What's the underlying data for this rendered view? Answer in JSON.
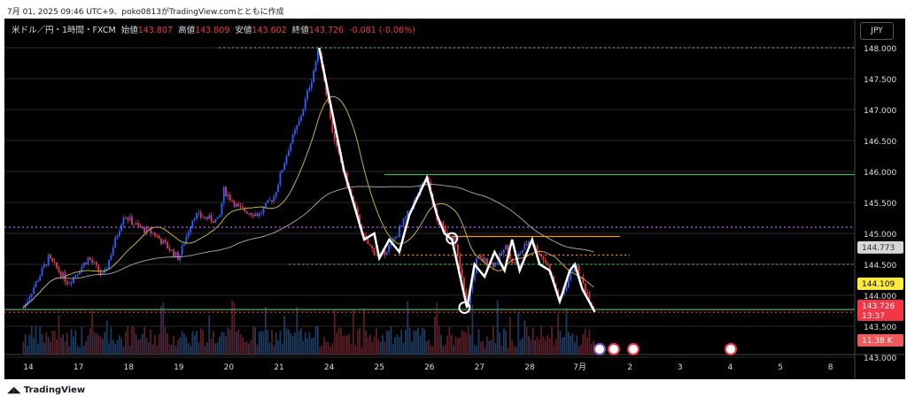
{
  "caption": "7月 01, 2025 09:46 UTC+9、poko0813がTradingView.comとともに作成",
  "legend": {
    "symbol": "米ドル／円・1時間・FXCM",
    "open_label": "始値",
    "open": "143.807",
    "high_label": "高値",
    "high": "143.809",
    "low_label": "安値",
    "low": "143.602",
    "close_label": "終値",
    "close": "143.726",
    "change": "-0.081 (-0.06%)"
  },
  "currency_button": "JPY",
  "brand": "TradingView",
  "price_badges": {
    "ma_gray": "144.773",
    "ma_yellow": "144.109",
    "last": "143.726",
    "countdown": "13:37",
    "volume": "11.38 K"
  },
  "colors": {
    "up": "#2962ff",
    "down": "#f23645",
    "ma_fast": "#c9b037",
    "ma_slow": "#9e9e9e",
    "zigzag": "#ffffff"
  },
  "chart_data": {
    "type": "candlestick",
    "timeframe": "1h",
    "y_ticks": [
      "148.000",
      "147.500",
      "147.000",
      "146.500",
      "146.000",
      "145.500",
      "145.000",
      "144.500",
      "144.000",
      "143.500",
      "143.000"
    ],
    "ylim": [
      143.0,
      148.0
    ],
    "x_ticks": [
      "14",
      "17",
      "18",
      "19",
      "20",
      "21",
      "24",
      "25",
      "26",
      "27",
      "28",
      "7月",
      "2",
      "3",
      "4",
      "5",
      "8"
    ],
    "price_path": [
      [
        0,
        143.8
      ],
      [
        0.5,
        144.6
      ],
      [
        0.9,
        144.2
      ],
      [
        1.3,
        144.6
      ],
      [
        1.6,
        144.3
      ],
      [
        2.0,
        145.3
      ],
      [
        2.3,
        145.1
      ],
      [
        2.6,
        145.0
      ],
      [
        3.1,
        144.6
      ],
      [
        3.4,
        145.3
      ],
      [
        3.9,
        145.2
      ],
      [
        4.0,
        145.7
      ],
      [
        4.3,
        145.4
      ],
      [
        4.7,
        145.3
      ],
      [
        5.0,
        145.6
      ],
      [
        5.3,
        146.4
      ],
      [
        5.5,
        146.8
      ],
      [
        5.75,
        147.5
      ],
      [
        5.9,
        148.0
      ],
      [
        6.2,
        146.5
      ],
      [
        6.5,
        145.7
      ],
      [
        6.8,
        144.9
      ],
      [
        7.1,
        144.6
      ],
      [
        7.4,
        144.9
      ],
      [
        8.05,
        145.9
      ],
      [
        8.25,
        145.2
      ],
      [
        8.6,
        144.9
      ],
      [
        8.85,
        143.8
      ],
      [
        9.05,
        144.6
      ],
      [
        9.4,
        144.5
      ],
      [
        9.65,
        144.8
      ],
      [
        9.75,
        144.5
      ],
      [
        10.1,
        144.9
      ],
      [
        10.45,
        144.5
      ],
      [
        10.7,
        143.9
      ],
      [
        11.0,
        144.5
      ],
      [
        11.4,
        143.73
      ]
    ],
    "zigzag": [
      [
        5.9,
        148.0
      ],
      [
        6.4,
        146.0
      ],
      [
        6.8,
        144.9
      ],
      [
        7.0,
        145.0
      ],
      [
        7.1,
        144.6
      ],
      [
        7.3,
        144.9
      ],
      [
        7.5,
        144.7
      ],
      [
        7.7,
        145.3
      ],
      [
        8.05,
        145.9
      ],
      [
        8.25,
        145.3
      ],
      [
        8.4,
        145.0
      ],
      [
        8.55,
        144.9
      ],
      [
        8.85,
        143.8
      ],
      [
        9.0,
        144.5
      ],
      [
        9.2,
        144.3
      ],
      [
        9.4,
        144.7
      ],
      [
        9.6,
        144.4
      ],
      [
        9.75,
        144.9
      ],
      [
        9.9,
        144.4
      ],
      [
        10.15,
        144.9
      ],
      [
        10.3,
        144.5
      ],
      [
        10.5,
        144.4
      ],
      [
        10.7,
        143.9
      ],
      [
        10.9,
        144.4
      ],
      [
        11.0,
        144.5
      ],
      [
        11.15,
        144.1
      ],
      [
        11.4,
        143.73
      ]
    ],
    "levels": [
      {
        "price": 148.0,
        "style": "dotted",
        "color": "#4caf50",
        "from": 3.9
      },
      {
        "price": 145.1,
        "style": "dotted",
        "color": "#c060ff",
        "from": -1
      },
      {
        "price": 145.95,
        "style": "solid",
        "color": "#4caf50",
        "from": 7.2
      },
      {
        "price": 144.95,
        "style": "solid",
        "color": "#ff9800",
        "from": 8.55,
        "to": 11.9
      },
      {
        "price": 144.65,
        "style": "dotted",
        "color": "#ff9800",
        "from": 7.4,
        "to": 12.1
      },
      {
        "price": 144.5,
        "style": "dotted",
        "color": "#4caf50",
        "from": 5.3
      },
      {
        "price": 143.77,
        "style": "solid",
        "color": "#4caf50",
        "from": -1
      },
      {
        "price": 143.726,
        "style": "dotted",
        "color": "#f23645",
        "from": -1
      }
    ],
    "circles": [
      [
        8.55,
        144.92
      ],
      [
        8.8,
        143.8
      ]
    ]
  }
}
